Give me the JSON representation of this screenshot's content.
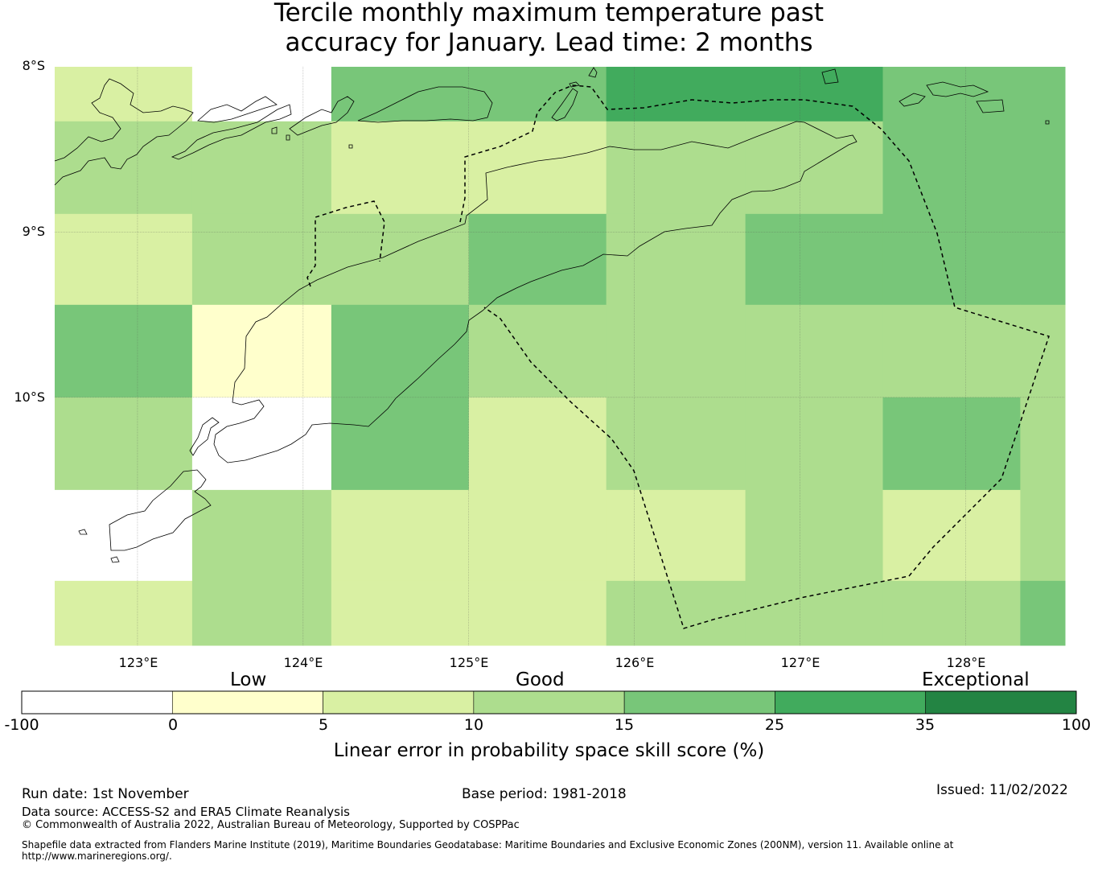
{
  "title_line1": "Tercile monthly maximum temperature past",
  "title_line2": "accuracy for January. Lead time: 2 months",
  "axes": {
    "lon_ticks": [
      "123°E",
      "124°E",
      "125°E",
      "126°E",
      "127°E",
      "128°E"
    ],
    "lat_ticks": [
      "8°S",
      "9°S",
      "10°S"
    ]
  },
  "colorbar": {
    "categories": [
      "Low",
      "Good",
      "Exceptional"
    ],
    "bounds": [
      "-100",
      "0",
      "5",
      "10",
      "15",
      "25",
      "35",
      "100"
    ],
    "colors": [
      "#ffffff",
      "#ffffcc",
      "#d9f0a3",
      "#addd8e",
      "#78c679",
      "#41ab5d",
      "#238443"
    ],
    "label": "Linear error in probability space skill score (%)"
  },
  "grid": {
    "lon_edges": [
      122.5,
      123.33,
      124.17,
      125.0,
      125.83,
      126.67,
      127.5,
      128.33,
      128.6
    ],
    "lat_edges": [
      -8.0,
      -8.33,
      -8.89,
      -9.44,
      -10.0,
      -10.56,
      -11.11,
      -11.5
    ],
    "classes": [
      [
        2,
        0,
        4,
        4,
        5,
        5,
        4,
        4
      ],
      [
        3,
        3,
        2,
        2,
        3,
        3,
        4,
        4
      ],
      [
        2,
        3,
        3,
        4,
        3,
        4,
        4,
        4
      ],
      [
        4,
        1,
        4,
        3,
        3,
        3,
        3,
        3
      ],
      [
        3,
        0,
        4,
        2,
        3,
        3,
        4,
        3
      ],
      [
        0,
        3,
        2,
        2,
        2,
        3,
        2,
        3
      ],
      [
        2,
        3,
        2,
        2,
        3,
        3,
        3,
        4
      ]
    ]
  },
  "footer": {
    "run_date": "Run date: 1st November",
    "base_period": "Base period: 1981-2018",
    "issued": "Issued: 11/02/2022",
    "data_source": "Data source: ACCESS-S2 and ERA5 Climate Reanalysis",
    "copyright": "© Commonwealth of Australia 2022, Australian Bureau of Meteorology, Supported by COSPPac",
    "shapefile_line1": "Shapefile data extracted from Flanders Marine Institute (2019), Maritime Boundaries Geodatabase: Maritime Boundaries and Exclusive Economic Zones (200NM), version 11. Available online at",
    "shapefile_line2": "http://www.marineregions.org/."
  }
}
